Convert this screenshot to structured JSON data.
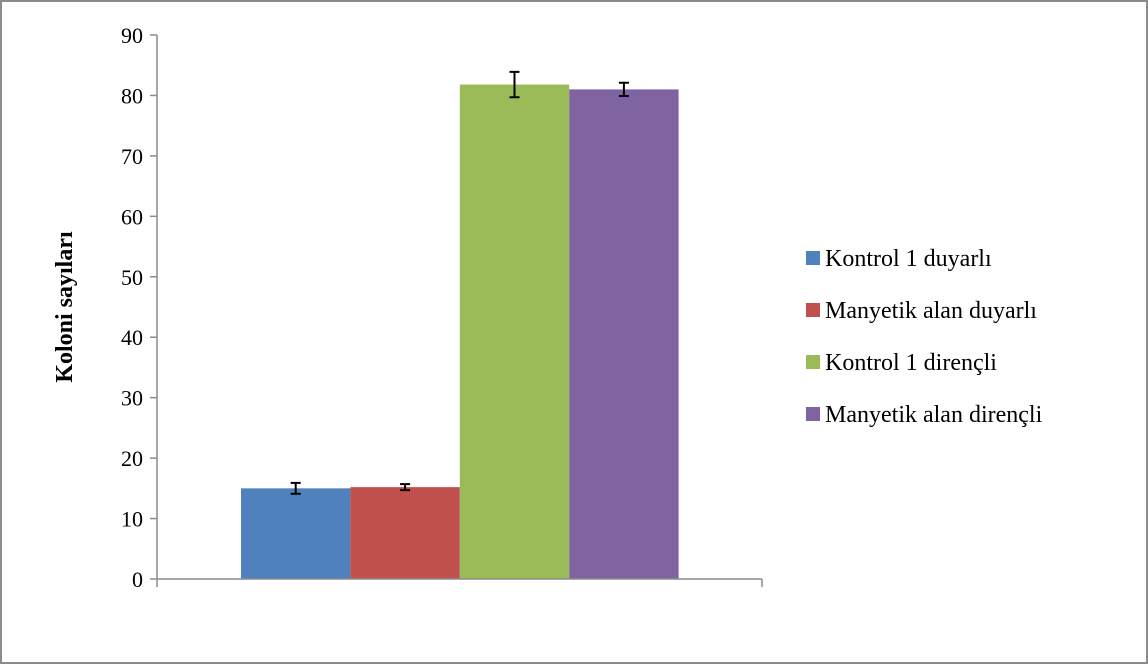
{
  "chart_data": {
    "type": "bar",
    "title": "",
    "xlabel": "",
    "ylabel": "Koloni sayıları",
    "ylim": [
      0,
      90
    ],
    "yticks": [
      0,
      10,
      20,
      30,
      40,
      50,
      60,
      70,
      80,
      90
    ],
    "grid": false,
    "legend_position": "right",
    "categories": [
      ""
    ],
    "series": [
      {
        "name": "Kontrol 1  duyarlı",
        "values": [
          15.0
        ],
        "error": [
          0.9
        ],
        "color": "#4f81bd"
      },
      {
        "name": "Manyetik alan duyarlı",
        "values": [
          15.2
        ],
        "error": [
          0.5
        ],
        "color": "#c0504d"
      },
      {
        "name": "Kontrol 1  dirençli",
        "values": [
          81.8
        ],
        "error": [
          2.1
        ],
        "color": "#9bbb59"
      },
      {
        "name": "Manyetik alan dirençli",
        "values": [
          81.0
        ],
        "error": [
          1.1
        ],
        "color": "#8064a2"
      }
    ]
  }
}
